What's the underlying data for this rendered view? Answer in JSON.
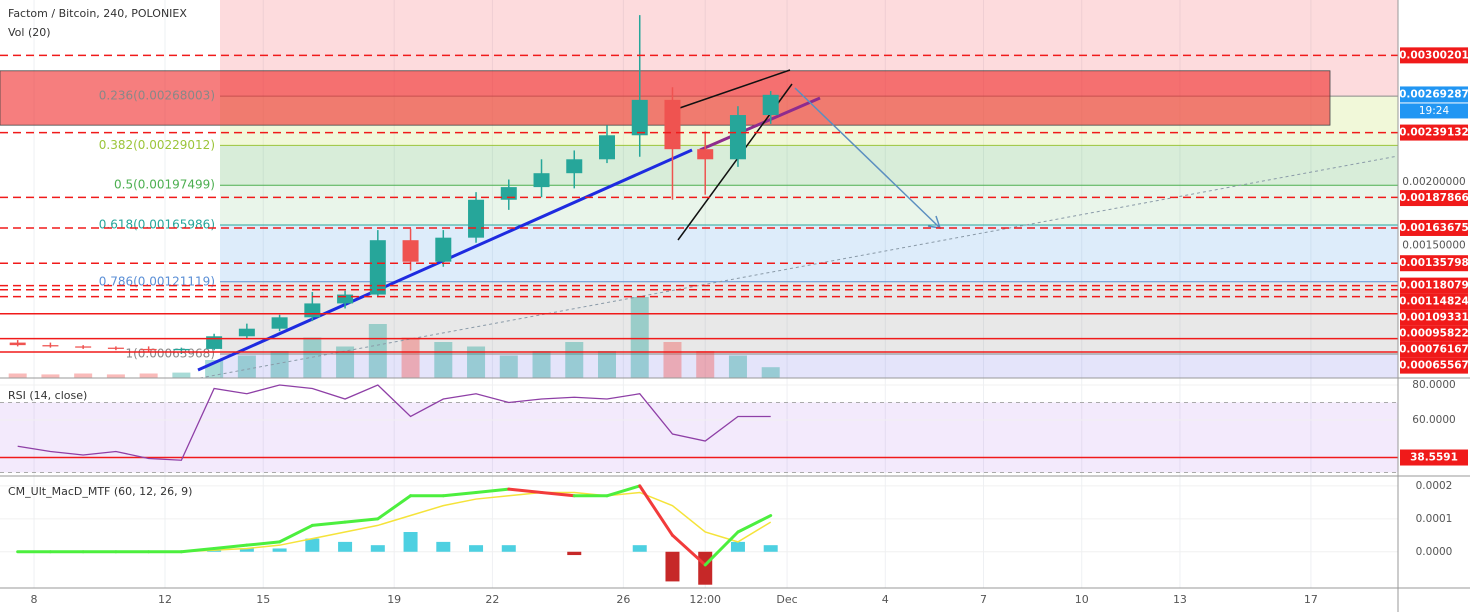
{
  "chart_data": [
    {
      "type": "candlestick",
      "title": "Factom / Bitcoin, 240, POLONIEX",
      "x": [
        7.5,
        8.5,
        9.5,
        10.5,
        11.5,
        12.5,
        13.5,
        14.5,
        15.5,
        16.5,
        17.5,
        18.5,
        19.5,
        20.5,
        21.5,
        22.5,
        23.5,
        24.5,
        25.5,
        26.5,
        27.5,
        28.5,
        29.5,
        30.5
      ],
      "open": [
        0.00073,
        0.00071,
        0.0007,
        0.00069,
        0.00068,
        0.00067,
        0.00068,
        0.00078,
        0.00084,
        0.00093,
        0.00104,
        0.00111,
        0.00154,
        0.00137,
        0.00156,
        0.00186,
        0.00196,
        0.00207,
        0.00218,
        0.00237,
        0.00265,
        0.00226,
        0.00218,
        0.00253
      ],
      "high": [
        0.00075,
        0.00073,
        0.00071,
        0.0007,
        0.0007,
        0.00069,
        0.0008,
        0.00088,
        0.00095,
        0.00113,
        0.00114,
        0.00162,
        0.00163,
        0.00162,
        0.00192,
        0.00202,
        0.00218,
        0.00225,
        0.00245,
        0.00332,
        0.00275,
        0.0024,
        0.0026,
        0.00272
      ],
      "low": [
        0.0007,
        0.00069,
        0.00068,
        0.00067,
        0.00066,
        0.00064,
        0.00067,
        0.00076,
        0.00082,
        0.0009,
        0.001,
        0.00109,
        0.0013,
        0.00133,
        0.00152,
        0.00178,
        0.00188,
        0.00195,
        0.00215,
        0.0022,
        0.00186,
        0.0019,
        0.00212,
        0.00246
      ],
      "close": [
        0.00071,
        0.0007,
        0.00069,
        0.00068,
        0.00067,
        0.00068,
        0.00078,
        0.00084,
        0.00093,
        0.00104,
        0.00111,
        0.00154,
        0.00137,
        0.00156,
        0.00186,
        0.00196,
        0.00207,
        0.00218,
        0.00237,
        0.00265,
        0.00226,
        0.00218,
        0.00253,
        0.00269
      ],
      "up_color": "#26a69a",
      "down_color": "#ef5350",
      "ylim": [
        0.00045,
        0.00344
      ],
      "xlim": [
        6.96,
        49.66
      ],
      "xticks": [
        8,
        12,
        15,
        19,
        22,
        26,
        {
          "value": 28.5,
          "label": "12:00"
        },
        {
          "value": 31,
          "label": "Dec"
        },
        {
          "value": 34,
          "label": "4"
        },
        {
          "value": 37,
          "label": "7"
        },
        {
          "value": 40,
          "label": "10"
        },
        {
          "value": 43,
          "label": "13"
        },
        {
          "value": 47,
          "label": "17"
        }
      ],
      "volume": {
        "name": "Vol (20)",
        "values": [
          5,
          4,
          5,
          4,
          5,
          6,
          20,
          25,
          30,
          45,
          35,
          60,
          45,
          40,
          35,
          25,
          30,
          40,
          30,
          90,
          40,
          30,
          25,
          12
        ],
        "ylim": [
          0,
          100
        ]
      },
      "fib_top_fill": "rgba(242,54,69,0.18)",
      "fib_levels": [
        {
          "value": 0.00268003,
          "label": "0.236(0.00268003)",
          "color": "#888888",
          "fill": "rgba(205,230,120,0.28)"
        },
        {
          "value": 0.00229012,
          "label": "0.382(0.00229012)",
          "color": "#9cc53a",
          "fill": "rgba(76,175,80,0.22)"
        },
        {
          "value": 0.00197499,
          "label": "0.5(0.00197499)",
          "color": "#4caf50",
          "fill": "rgba(76,175,80,0.12)"
        },
        {
          "value": 0.00165986,
          "label": "0.618(0.00165986)",
          "color": "#26a69a",
          "fill": "rgba(100,170,230,0.22)"
        },
        {
          "value": 0.00121119,
          "label": "0.786(0.00121119)",
          "color": "#5b8fd6",
          "fill": "rgba(150,150,150,0.22)"
        },
        {
          "value": 0.00063968,
          "label": "1(0.00063968)",
          "color": "#888888",
          "fill": "rgba(120,120,230,0.2)"
        }
      ],
      "price_levels": [
        {
          "value": 0.00300201,
          "style": "dashed"
        },
        {
          "value": 0.00239132,
          "style": "dashed"
        },
        {
          "value": 0.00187866,
          "style": "dashed"
        },
        {
          "value": 0.00163675,
          "style": "dashed"
        },
        {
          "value": 0.00135798,
          "style": "dashed"
        },
        {
          "value": 0.00118079,
          "style": "dashed"
        },
        {
          "value": 0.00114824,
          "style": "dashed"
        },
        {
          "value": 0.00109331,
          "style": "dashed"
        },
        {
          "value": 0.00095822,
          "style": "solid"
        },
        {
          "value": 0.00076167,
          "style": "solid"
        },
        {
          "value": 0.00065567,
          "style": "solid"
        }
      ],
      "level_color": "#f01a1a",
      "price_ticks": [
        {
          "value": 0.002,
          "label": "0.00200000"
        },
        {
          "value": 0.0015,
          "label": "0.00150000"
        }
      ],
      "last_price": 0.00269287,
      "countdown": "19:24",
      "last_color": "#2196f3",
      "zone": [
        0.00245,
        0.00288
      ],
      "zone_color": "rgba(240,40,40,0.6)"
    },
    {
      "type": "line",
      "title": "RSI (14, close)",
      "x": [
        7.5,
        8.5,
        9.5,
        10.5,
        11.5,
        12.5,
        13.5,
        14.5,
        15.5,
        16.5,
        17.5,
        18.5,
        19.5,
        20.5,
        21.5,
        22.5,
        23.5,
        24.5,
        25.5,
        26.5,
        27.5,
        28.5,
        29.5,
        30.5
      ],
      "values": [
        45,
        42,
        40,
        42,
        38,
        37,
        78,
        75,
        80,
        78,
        72,
        80,
        62,
        72,
        75,
        70,
        72,
        73,
        72,
        75,
        52,
        48,
        62,
        62
      ],
      "color": "#8e3fa6",
      "ylim": [
        28,
        84
      ],
      "yticks": [
        {
          "value": 80,
          "label": "80.0000"
        },
        {
          "value": 60,
          "label": "60.0000"
        }
      ],
      "band": [
        30,
        70
      ],
      "band_color": "rgba(155,80,230,0.12)",
      "level": 38.5591,
      "level_color": "#f01a1a"
    },
    {
      "type": "macd",
      "title": "CM_Ult_MacD_MTF (60, 12, 26, 9)",
      "x": [
        7.5,
        8.5,
        9.5,
        10.5,
        11.5,
        12.5,
        13.5,
        14.5,
        15.5,
        16.5,
        17.5,
        18.5,
        19.5,
        20.5,
        21.5,
        22.5,
        23.5,
        24.5,
        25.5,
        26.5,
        27.5,
        28.5,
        29.5,
        30.5
      ],
      "macd": [
        0,
        0,
        0,
        0,
        0,
        0,
        1e-05,
        2e-05,
        3e-05,
        8e-05,
        9e-05,
        0.0001,
        0.00017,
        0.00017,
        0.00018,
        0.00019,
        0.00018,
        0.00017,
        0.00017,
        0.0002,
        5e-05,
        -4e-05,
        6e-05,
        0.00011
      ],
      "signal": [
        0,
        0,
        0,
        0,
        0,
        0,
        5e-06,
        1e-05,
        2e-05,
        4e-05,
        6e-05,
        8e-05,
        0.00011,
        0.00014,
        0.00016,
        0.00017,
        0.00018,
        0.00018,
        0.00017,
        0.00018,
        0.00014,
        6e-05,
        3e-05,
        9e-05
      ],
      "histogram": [
        0,
        0,
        0,
        0,
        0,
        0,
        5e-06,
        1e-05,
        1e-05,
        4e-05,
        3e-05,
        2e-05,
        6e-05,
        3e-05,
        2e-05,
        2e-05,
        0,
        -1e-05,
        0,
        2e-05,
        -9e-05,
        -0.0001,
        3e-05,
        2e-05
      ],
      "up_color": "#4cef3e",
      "down_color": "#f23b3b",
      "signal_color": "#f5e33a",
      "hist_up_color": "#4dd0e1",
      "hist_down_color": "#c62828",
      "ylim": [
        -0.00011,
        0.00023
      ],
      "yticks": [
        0.0002,
        0.0001,
        {
          "value": 0,
          "label": "0.0000"
        }
      ]
    }
  ]
}
